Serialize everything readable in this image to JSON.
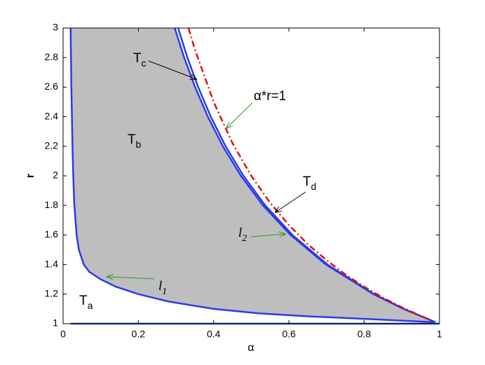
{
  "chart_data": {
    "type": "line",
    "x_label": "α",
    "y_label": "r",
    "xlim": [
      0,
      1
    ],
    "ylim": [
      1,
      3
    ],
    "xticks": [
      0,
      0.2,
      0.4,
      0.6,
      0.8,
      1
    ],
    "yticks": [
      1,
      1.2,
      1.4,
      1.6,
      1.8,
      2,
      2.2,
      2.4,
      2.6,
      2.8,
      3
    ],
    "fill_color": "#bebebe",
    "series": [
      {
        "color": "#2a3ce6",
        "style": "solid",
        "x": [
          0.02,
          0.022,
          0.025,
          0.027,
          0.03,
          0.036,
          0.042,
          0.055,
          0.07,
          0.1,
          0.14,
          0.2,
          0.28,
          0.4,
          0.52,
          0.65,
          0.82,
          0.985
        ],
        "values": [
          3,
          2.6,
          2.2,
          2.0,
          1.8,
          1.6,
          1.5,
          1.4,
          1.35,
          1.3,
          1.25,
          1.2,
          1.15,
          1.1,
          1.07,
          1.05,
          1.03,
          1.01
        ]
      },
      {
        "color": "#2a3ce6",
        "style": "solid",
        "x": [
          0.2967,
          0.3218,
          0.3508,
          0.3847,
          0.4246,
          0.4726,
          0.5312,
          0.6044,
          0.6986,
          0.8242,
          0.9041,
          0.9895
        ],
        "values": [
          3,
          2.8,
          2.6,
          2.4,
          2.2,
          2,
          1.8,
          1.6,
          1.4,
          1.2,
          1.1,
          1.01
        ]
      },
      {
        "color": "#2a3ce6",
        "style": "solid",
        "x": [
          0.3056,
          0.3303,
          0.359,
          0.3924,
          0.4318,
          0.4792,
          0.5371,
          0.6094,
          0.7024,
          0.8264,
          0.9053,
          0.9896
        ],
        "values": [
          3,
          2.8,
          2.6,
          2.4,
          2.2,
          2,
          1.8,
          1.6,
          1.4,
          1.2,
          1.1,
          1.01
        ]
      },
      {
        "color": "#e01010",
        "style": "dashdot",
        "x": [
          0.3333,
          0.35,
          0.4,
          0.45,
          0.5,
          0.55,
          0.6,
          0.65,
          0.7,
          0.75,
          0.8,
          0.85,
          0.9,
          0.95,
          0.98
        ],
        "values": [
          3.0,
          2.857,
          2.5,
          2.222,
          2.0,
          1.818,
          1.667,
          1.538,
          1.429,
          1.333,
          1.25,
          1.176,
          1.111,
          1.053,
          1.02
        ]
      },
      {
        "color": "#2a3ce6",
        "style": "solid",
        "x": [
          0.02,
          1
        ],
        "values": [
          1,
          1
        ]
      }
    ],
    "annotations": [
      {
        "text": "T",
        "sub": "a"
      },
      {
        "text": "T",
        "sub": "b"
      },
      {
        "text": "T",
        "sub": "c"
      },
      {
        "text": "T",
        "sub": "d"
      },
      {
        "text": "l",
        "sub": "1"
      },
      {
        "text": "l",
        "sub": "2"
      },
      {
        "text": "α*r=1"
      }
    ]
  }
}
